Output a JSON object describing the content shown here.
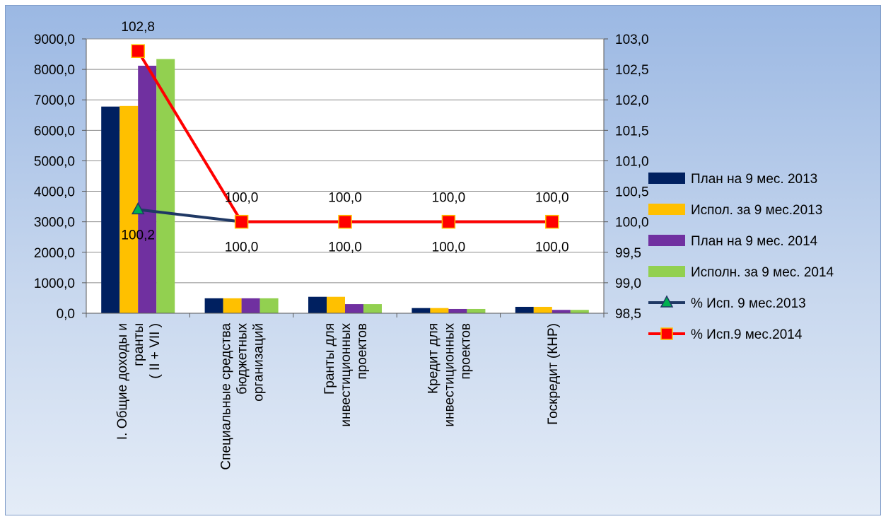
{
  "chart_data": {
    "type": "bar",
    "categories": [
      [
        "I.   Общие доходы и",
        "гранты",
        "( II + VII )"
      ],
      [
        "Специальные средства",
        "бюджетных",
        "организаций"
      ],
      [
        "Гранты для",
        "инвестиционных",
        "проектов"
      ],
      [
        "Кредит для",
        "инвестиционных",
        "проектов"
      ],
      [
        "Госкредит (КНР)"
      ]
    ],
    "y_ticks": [
      "0,0",
      "1000,0",
      "2000,0",
      "3000,0",
      "4000,0",
      "5000,0",
      "6000,0",
      "7000,0",
      "8000,0",
      "9000,0"
    ],
    "y2_ticks": [
      "98,5",
      "99,0",
      "99,5",
      "100,0",
      "100,5",
      "101,0",
      "101,5",
      "102,0",
      "102,5",
      "103,0"
    ],
    "ylim": [
      0,
      9000
    ],
    "y2lim": [
      98.5,
      103
    ],
    "grid": true,
    "legend_position": "right",
    "series": [
      {
        "name": "План на 9 мес. 2013",
        "kind": "bar",
        "color": "#002060",
        "values": [
          6780,
          490,
          540,
          170,
          210
        ]
      },
      {
        "name": "Испол. за 9 мес.2013",
        "kind": "bar",
        "color": "#ffc000",
        "values": [
          6800,
          490,
          540,
          170,
          210
        ]
      },
      {
        "name": "План на 9 мес. 2014",
        "kind": "bar",
        "color": "#7030a0",
        "values": [
          8120,
          490,
          300,
          140,
          110
        ]
      },
      {
        "name": "Исполн. за 9 мес. 2014",
        "kind": "bar",
        "color": "#92d050",
        "values": [
          8340,
          490,
          300,
          140,
          110
        ]
      },
      {
        "name": "% Исп. 9 мес.2013",
        "kind": "line",
        "axis": "right",
        "color": "#1f3864",
        "marker": "triangle",
        "values": [
          100.2,
          100.0,
          100.0,
          100.0,
          100.0
        ],
        "labels": [
          "100,2",
          "100,0",
          "100,0",
          "100,0",
          "100,0"
        ]
      },
      {
        "name": "% Исп.9 мес.2014",
        "kind": "line",
        "axis": "right",
        "color": "#ff0000",
        "marker": "square",
        "values": [
          102.8,
          100.0,
          100.0,
          100.0,
          100.0
        ],
        "labels": [
          "102,8",
          "100,0",
          "100,0",
          "100,0",
          "100,0"
        ]
      }
    ]
  }
}
